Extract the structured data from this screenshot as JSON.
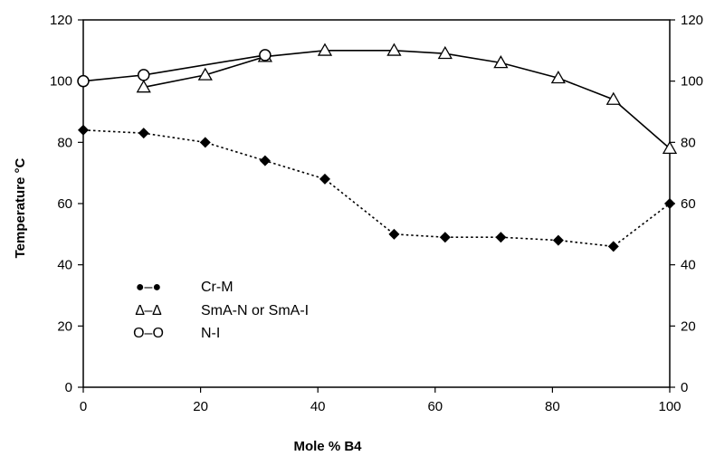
{
  "chart_data": {
    "type": "line",
    "xlabel": "Mole % B4",
    "ylabel": "Temperature °C",
    "xlim": [
      0,
      100
    ],
    "ylim": [
      0,
      120
    ],
    "x_ticks": [
      "0",
      "20",
      "40",
      "60",
      "80",
      "100"
    ],
    "y_ticks": [
      "0",
      "20",
      "40",
      "60",
      "80",
      "100",
      "120"
    ],
    "y_ticks_right": [
      "0",
      "20",
      "40",
      "60",
      "80",
      "100",
      "120"
    ],
    "series": [
      {
        "key": "crm",
        "marker": "diamond",
        "line_style": "dotted",
        "color": "#000000",
        "x": [
          0,
          10.3,
          20.8,
          31.0,
          41.2,
          53.0,
          61.7,
          71.2,
          81.0,
          90.4,
          100
        ],
        "y": [
          84,
          83,
          80,
          74,
          68,
          50,
          49,
          49,
          48,
          46,
          60
        ]
      },
      {
        "key": "sma",
        "marker": "triangle-open",
        "line_style": "solid",
        "color": "#000000",
        "x": [
          10.3,
          20.8,
          31.0,
          41.2,
          53.0,
          61.7,
          71.2,
          81.0,
          90.4,
          100
        ],
        "y": [
          98,
          102,
          108,
          110,
          110,
          109,
          106,
          101,
          94,
          78
        ]
      },
      {
        "key": "ni",
        "marker": "circle-open",
        "line_style": "solid",
        "color": "#000000",
        "x": [
          0,
          10.3,
          31.0
        ],
        "y": [
          100,
          102,
          108.5
        ]
      }
    ],
    "legend": {
      "placement": "lower-left",
      "entries": [
        {
          "symbol": "●–●",
          "label": "Cr-M"
        },
        {
          "symbol": "∆–∆",
          "label": "SmA-N or SmA-I"
        },
        {
          "symbol": "O–O",
          "label": "N-I"
        }
      ]
    },
    "grid": false,
    "right_axis": true
  }
}
